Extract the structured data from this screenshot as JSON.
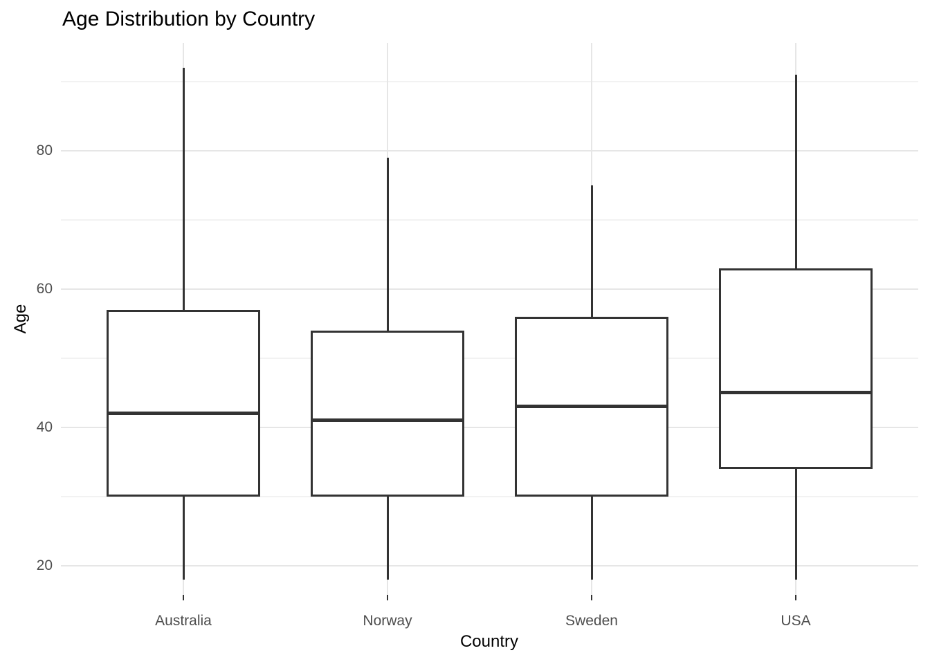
{
  "chart_data": {
    "type": "boxplot",
    "title": "Age Distribution by Country",
    "xlabel": "Country",
    "ylabel": "Age",
    "categories": [
      "Australia",
      "Norway",
      "Sweden",
      "USA"
    ],
    "series": [
      {
        "category": "Australia",
        "whisker_low": 18,
        "q1": 30,
        "median": 42,
        "q3": 57,
        "whisker_high": 92
      },
      {
        "category": "Norway",
        "whisker_low": 18,
        "q1": 30,
        "median": 41,
        "q3": 54,
        "whisker_high": 79
      },
      {
        "category": "Sweden",
        "whisker_low": 18,
        "q1": 30,
        "median": 43,
        "q3": 56,
        "whisker_high": 75
      },
      {
        "category": "USA",
        "whisker_low": 18,
        "q1": 34,
        "median": 45,
        "q3": 63,
        "whisker_high": 91
      }
    ],
    "y_axis": {
      "ticks": [
        20,
        40,
        60,
        80
      ],
      "minor_gridlines": [
        30,
        50,
        70,
        90
      ],
      "domain": [
        15.75,
        95.55
      ]
    },
    "grid": true,
    "legend": false,
    "style": {
      "background": "#ffffff",
      "box_stroke": "#333333",
      "box_fill": "#ffffff",
      "grid_major": "#e6e6e6",
      "grid_minor": "#f2f2f2",
      "axis_text_color": "#4d4d4d",
      "title_color": "#000000"
    }
  }
}
